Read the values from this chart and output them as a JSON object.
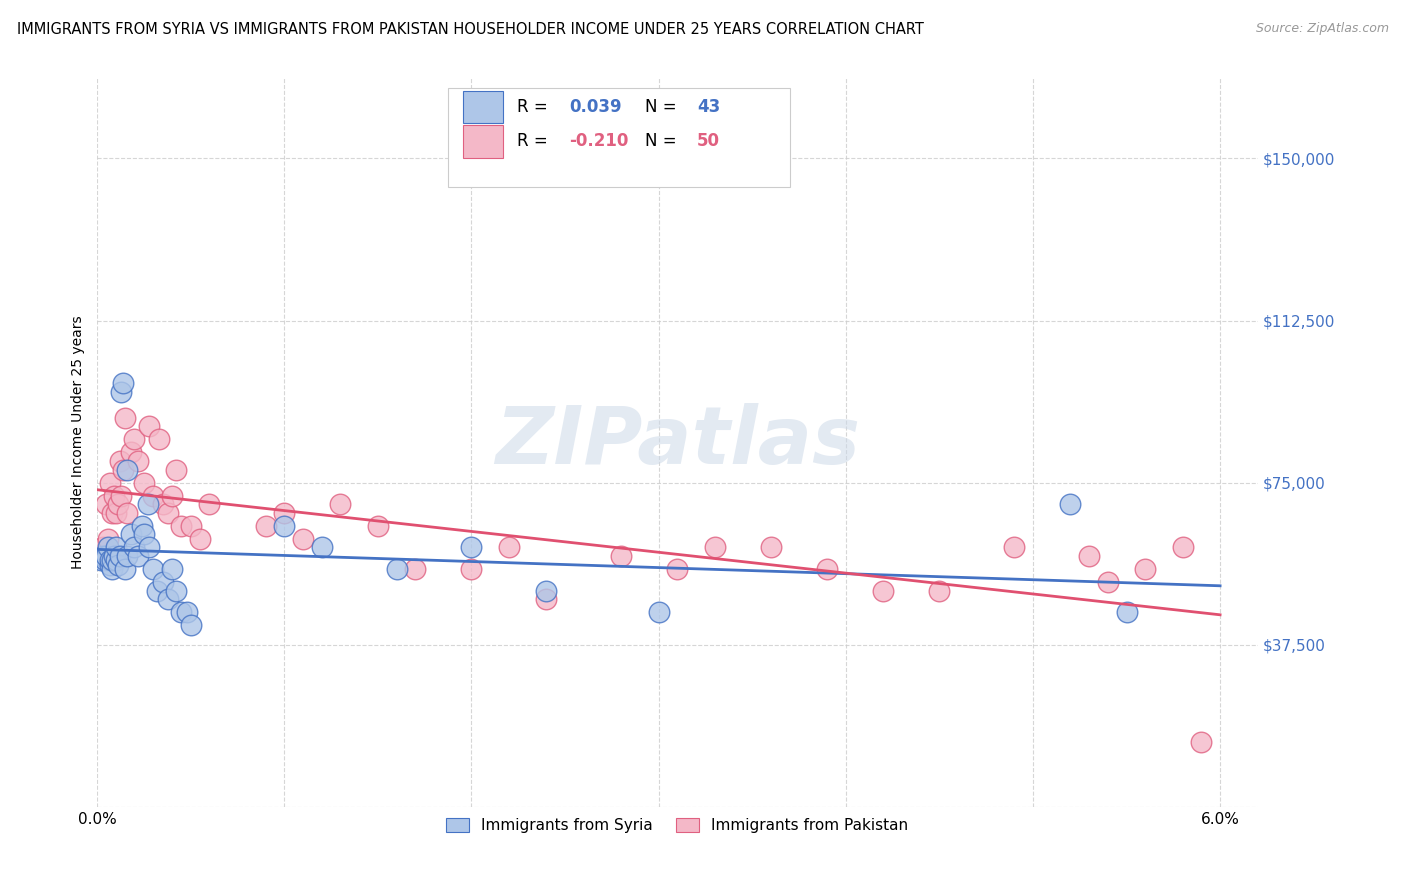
{
  "title": "IMMIGRANTS FROM SYRIA VS IMMIGRANTS FROM PAKISTAN HOUSEHOLDER INCOME UNDER 25 YEARS CORRELATION CHART",
  "source": "Source: ZipAtlas.com",
  "ylabel": "Householder Income Under 25 years",
  "xlim": [
    0.0,
    0.062
  ],
  "ylim": [
    0,
    168750
  ],
  "xticklabels": [
    "0.0%",
    "",
    "",
    "",
    "",
    "",
    "6.0%"
  ],
  "xtick_vals": [
    0.0,
    0.01,
    0.02,
    0.03,
    0.04,
    0.05,
    0.06
  ],
  "ytick_vals": [
    0,
    37500,
    75000,
    112500,
    150000
  ],
  "ytick_labels": [
    "",
    "$37,500",
    "$75,000",
    "$112,500",
    "$150,000"
  ],
  "ytick_color": "#4472c4",
  "syria_color": "#aec6e8",
  "pakistan_color": "#f4b8c8",
  "syria_edge_color": "#4472c4",
  "pakistan_edge_color": "#e06080",
  "syria_line_color": "#4472c4",
  "pakistan_line_color": "#e05070",
  "syria_R": 0.039,
  "syria_N": 43,
  "pakistan_R": -0.21,
  "pakistan_N": 50,
  "watermark": "ZIPatlas",
  "syria_x": [
    0.0002,
    0.0003,
    0.0004,
    0.0005,
    0.0006,
    0.0007,
    0.0007,
    0.0008,
    0.0008,
    0.0009,
    0.001,
    0.001,
    0.0011,
    0.0012,
    0.0013,
    0.0014,
    0.0015,
    0.0016,
    0.0016,
    0.0018,
    0.002,
    0.0022,
    0.0024,
    0.0025,
    0.0027,
    0.0028,
    0.003,
    0.0032,
    0.0035,
    0.0038,
    0.004,
    0.0042,
    0.0045,
    0.0048,
    0.005,
    0.01,
    0.012,
    0.016,
    0.02,
    0.024,
    0.03,
    0.052,
    0.055
  ],
  "syria_y": [
    57000,
    58000,
    57000,
    58000,
    60000,
    56000,
    57000,
    55000,
    57000,
    58000,
    57000,
    60000,
    56000,
    58000,
    96000,
    98000,
    55000,
    58000,
    78000,
    63000,
    60000,
    58000,
    65000,
    63000,
    70000,
    60000,
    55000,
    50000,
    52000,
    48000,
    55000,
    50000,
    45000,
    45000,
    42000,
    65000,
    60000,
    55000,
    60000,
    50000,
    45000,
    70000,
    45000
  ],
  "pakistan_x": [
    0.0003,
    0.0005,
    0.0006,
    0.0007,
    0.0008,
    0.0009,
    0.001,
    0.0011,
    0.0012,
    0.0013,
    0.0014,
    0.0015,
    0.0016,
    0.0018,
    0.002,
    0.0022,
    0.0025,
    0.0028,
    0.003,
    0.0033,
    0.0035,
    0.0038,
    0.004,
    0.0042,
    0.0045,
    0.005,
    0.0055,
    0.006,
    0.009,
    0.01,
    0.011,
    0.013,
    0.015,
    0.017,
    0.02,
    0.022,
    0.024,
    0.028,
    0.031,
    0.033,
    0.036,
    0.039,
    0.042,
    0.045,
    0.049,
    0.053,
    0.054,
    0.056,
    0.058,
    0.059
  ],
  "pakistan_y": [
    60000,
    70000,
    62000,
    75000,
    68000,
    72000,
    68000,
    70000,
    80000,
    72000,
    78000,
    90000,
    68000,
    82000,
    85000,
    80000,
    75000,
    88000,
    72000,
    85000,
    70000,
    68000,
    72000,
    78000,
    65000,
    65000,
    62000,
    70000,
    65000,
    68000,
    62000,
    70000,
    65000,
    55000,
    55000,
    60000,
    48000,
    58000,
    55000,
    60000,
    60000,
    55000,
    50000,
    50000,
    60000,
    58000,
    52000,
    55000,
    60000,
    15000
  ],
  "background_color": "#ffffff",
  "grid_color": "#cccccc",
  "title_fontsize": 10.5,
  "axis_label_fontsize": 10,
  "tick_fontsize": 11
}
